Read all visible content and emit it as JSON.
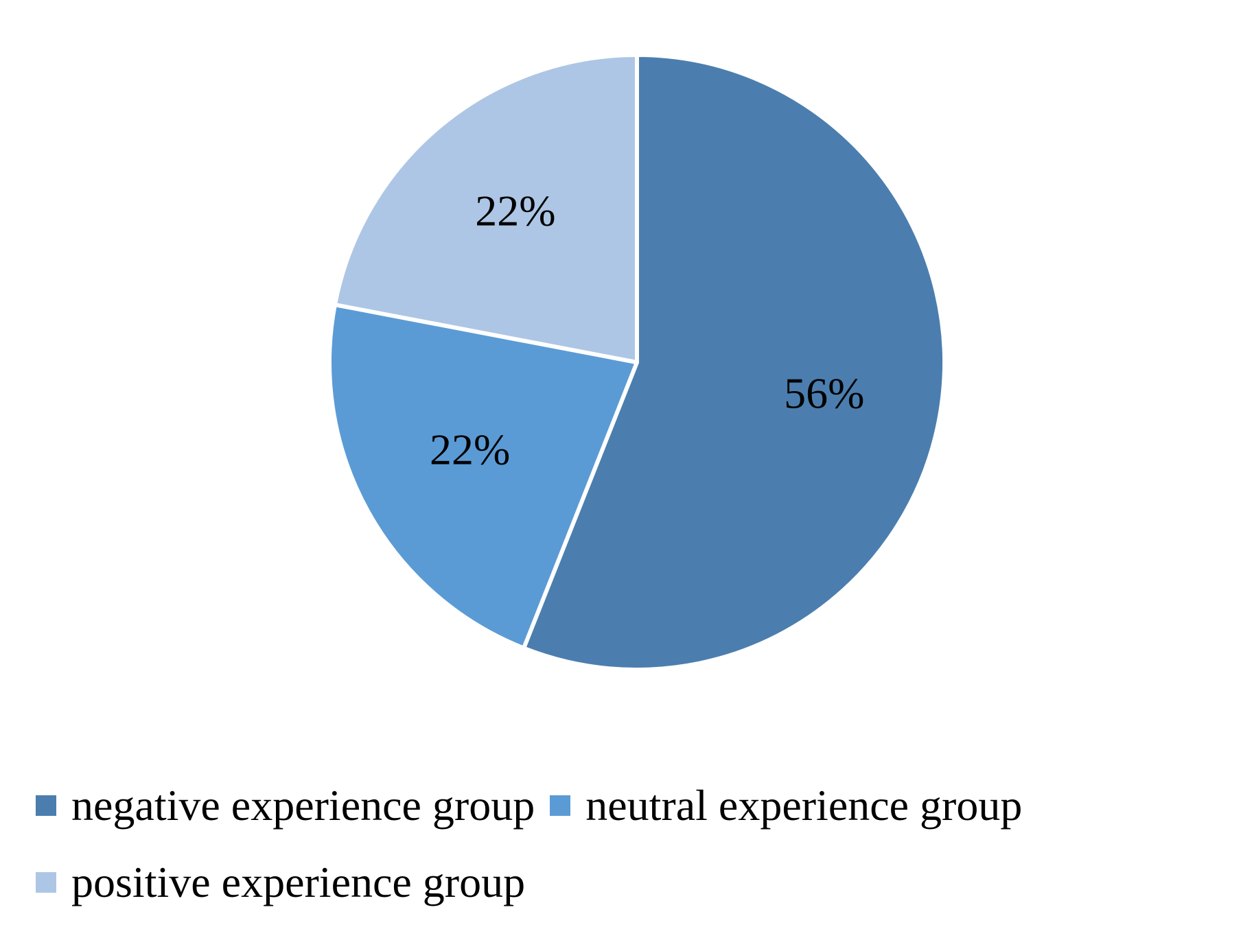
{
  "chart_data": {
    "type": "pie",
    "title": "",
    "slices": [
      {
        "name": "negative experience group",
        "value": 56,
        "label": "56%",
        "color": "#4b7eaf"
      },
      {
        "name": "neutral experience group",
        "value": 22,
        "label": "22%",
        "color": "#5b9bd5"
      },
      {
        "name": "positive experience group",
        "value": 22,
        "label": "22%",
        "color": "#adc6e5"
      }
    ],
    "start": "12 o'clock",
    "direction": "clockwise",
    "legend_position": "bottom"
  }
}
